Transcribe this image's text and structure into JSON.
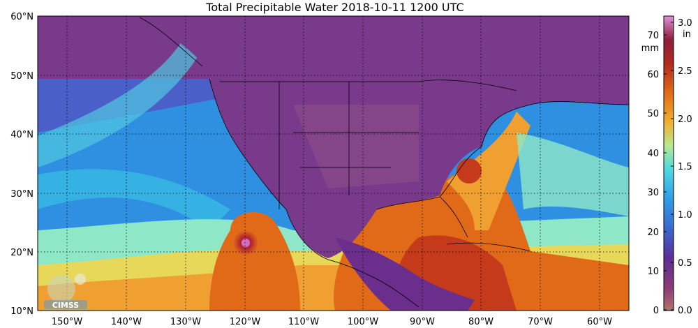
{
  "title": "Total Precipitable Water  2018-10-11 1200 UTC",
  "lat_labels": [
    "60°N",
    "50°N",
    "40°N",
    "30°N",
    "20°N",
    "10°N"
  ],
  "lon_labels": [
    "150°W",
    "140°W",
    "130°W",
    "120°W",
    "110°W",
    "100°W",
    "90°W",
    "80°W",
    "70°W",
    "60°W"
  ],
  "colorbar": {
    "mm_unit": "mm",
    "in_unit": "in",
    "mm_ticks": [
      "70",
      "60",
      "50",
      "40",
      "30",
      "20",
      "10",
      "0"
    ],
    "in_ticks": [
      "3.0",
      "2.5",
      "2.0",
      "1.5",
      "1.0",
      "0.5",
      "0.0"
    ],
    "colors": [
      "#b0736a",
      "#8a3a78",
      "#6b2e8c",
      "#4a5fc8",
      "#2f8fe0",
      "#3cc8e6",
      "#8ee8c8",
      "#e8d85a",
      "#f0a030",
      "#e06a18",
      "#c43a1a",
      "#8c1f2a",
      "#c04080",
      "#e0a0e0"
    ]
  },
  "logo": {
    "text": "CIMSS"
  }
}
